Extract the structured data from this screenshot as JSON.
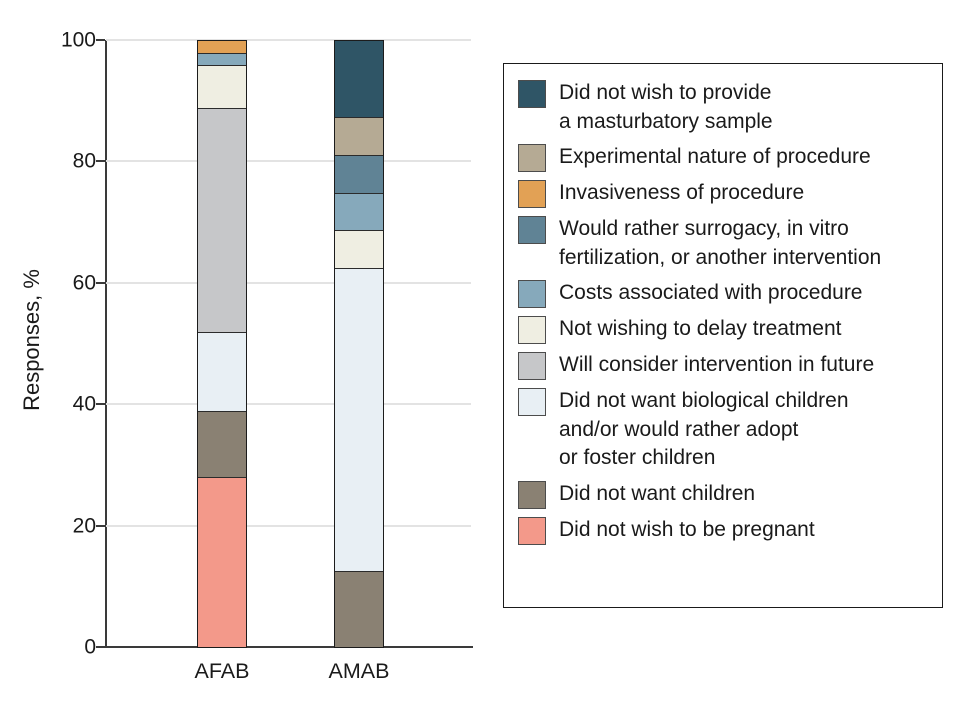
{
  "chart_data": {
    "type": "bar",
    "subtype": "stacked-vertical",
    "title": "",
    "ylabel": "Responses, %",
    "xlabel": "",
    "ylim": [
      0,
      100
    ],
    "yticks": [
      0,
      20,
      40,
      60,
      80,
      100
    ],
    "ytick_labels": [
      "0",
      "20",
      "40",
      "60",
      "80",
      "100"
    ],
    "grid": "horizontal-light",
    "legend_position": "right-box",
    "categories": [
      "AFAB",
      "AMAB"
    ],
    "series": [
      {
        "name": "Did not wish to be pregnant",
        "legend_label": "Did not wish to be pregnant",
        "color": "#f3998a",
        "values": [
          28,
          0
        ]
      },
      {
        "name": "Did not want children",
        "legend_label": "Did not want children",
        "color": "#8a8173",
        "values": [
          11,
          12.5
        ]
      },
      {
        "name": "Did not want biological children and/or would rather adopt or foster children",
        "legend_label": "Did not want biological children\nand/or would rather adopt\nor foster children",
        "color": "#e8eff4",
        "values": [
          13,
          50
        ]
      },
      {
        "name": "Will consider intervention in future",
        "legend_label": "Will consider intervention in future",
        "color": "#c6c7c9",
        "values": [
          37,
          0
        ]
      },
      {
        "name": "Not wishing to delay treatment",
        "legend_label": "Not wishing to delay treatment",
        "color": "#efeee2",
        "values": [
          7,
          6.25
        ]
      },
      {
        "name": "Costs associated with procedure",
        "legend_label": "Costs associated with procedure",
        "color": "#86a9bb",
        "values": [
          2,
          6.25
        ]
      },
      {
        "name": "Would rather surrogacy, in vitro fertilization, or another intervention",
        "legend_label": "Would rather surrogacy, in vitro\nfertilization, or another intervention",
        "color": "#608395",
        "values": [
          0,
          6.25
        ]
      },
      {
        "name": "Invasiveness of procedure",
        "legend_label": "Invasiveness of procedure",
        "color": "#e2a155",
        "values": [
          2,
          0
        ]
      },
      {
        "name": "Experimental nature of procedure",
        "legend_label": "Experimental nature of procedure",
        "color": "#b5aa94",
        "values": [
          0,
          6.25
        ]
      },
      {
        "name": "Did not wish to provide a masturbatory sample",
        "legend_label": "Did not wish to provide\na masturbatory sample",
        "color": "#2f5566",
        "values": [
          0,
          12.5
        ]
      }
    ],
    "colors": {
      "axis": "#3a3a3a",
      "gridline": "#e3e3e3",
      "bar_border": "#1c1c1c",
      "text": "#1a1a1a",
      "background": "#ffffff"
    }
  }
}
